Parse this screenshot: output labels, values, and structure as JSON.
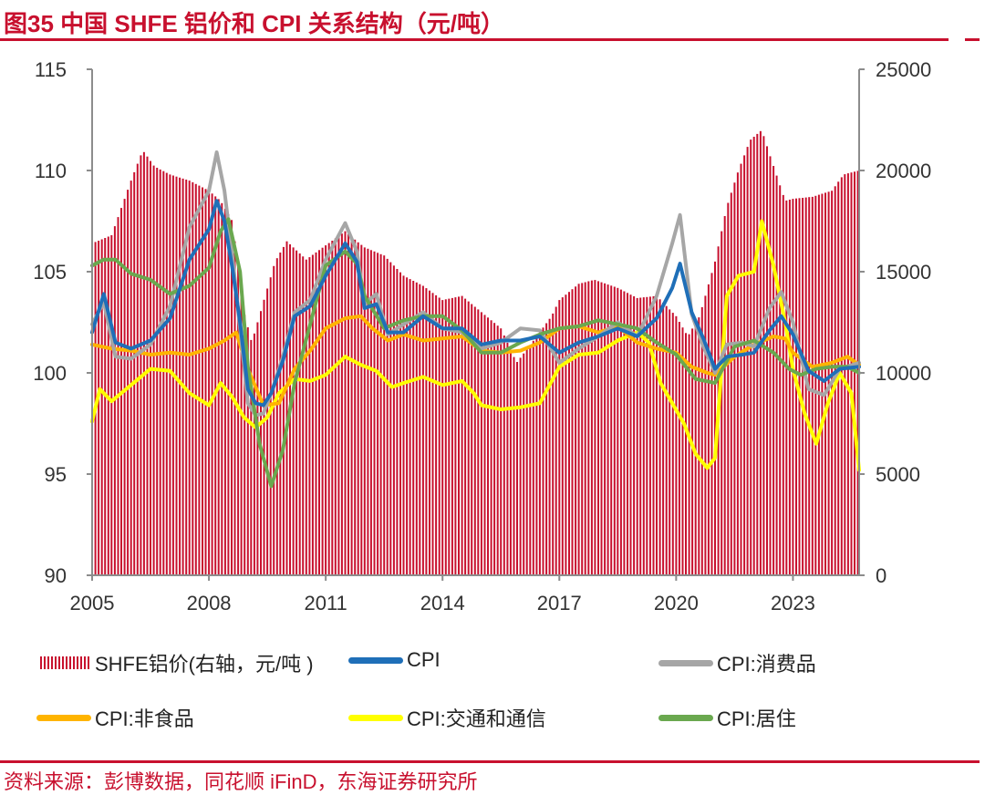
{
  "title": "图35  中国 SHFE 铝价和 CPI 关系结构（元/吨）",
  "source": "资料来源：彭博数据，同花顺 iFinD，东海证券研究所",
  "colors": {
    "brand": "#c8102e",
    "bars": "#c8102e",
    "cpi": "#1f6fb8",
    "consumer": "#a6a6a6",
    "nonfood": "#ffb400",
    "transport": "#ffff00",
    "housing": "#6aa84f",
    "axis": "#8c8c8c"
  },
  "legend": [
    {
      "key": "aluminium",
      "label": "SHFE铝价(右轴，元/吨 )",
      "type": "bar"
    },
    {
      "key": "cpi",
      "label": "CPI",
      "type": "line"
    },
    {
      "key": "consumer",
      "label": "CPI:消费品",
      "type": "line"
    },
    {
      "key": "nonfood",
      "label": "CPI:非食品",
      "type": "line"
    },
    {
      "key": "transport",
      "label": "CPI:交通和通信",
      "type": "line"
    },
    {
      "key": "housing",
      "label": "CPI:居住",
      "type": "line"
    }
  ],
  "chart_data": {
    "type": "bar+line",
    "x_range": [
      2005,
      2024.7
    ],
    "x_ticks": [
      "2005",
      "2008",
      "2011",
      "2014",
      "2017",
      "2020",
      "2023"
    ],
    "y_left": {
      "range": [
        90,
        115
      ],
      "ticks": [
        "90",
        "95",
        "100",
        "105",
        "110",
        "115"
      ]
    },
    "y_right": {
      "range": [
        0,
        25000
      ],
      "ticks": [
        "0",
        "5000",
        "10000",
        "15000",
        "20000",
        "25000"
      ]
    },
    "grid": false,
    "series": [
      {
        "name": "SHFE铝价(右轴，元/吨 )",
        "type": "bar",
        "axis": "right",
        "x": [
          2005.0,
          2005.5,
          2006.0,
          2006.3,
          2006.6,
          2007.0,
          2007.5,
          2008.0,
          2008.3,
          2008.6,
          2008.9,
          2009.1,
          2009.4,
          2009.7,
          2010.0,
          2010.5,
          2011.0,
          2011.5,
          2011.8,
          2012.0,
          2012.5,
          2013.0,
          2013.5,
          2014.0,
          2014.5,
          2015.0,
          2015.5,
          2015.9,
          2016.3,
          2016.8,
          2017.0,
          2017.5,
          2017.9,
          2018.5,
          2019.0,
          2019.5,
          2020.0,
          2020.3,
          2020.6,
          2021.0,
          2021.3,
          2021.6,
          2021.9,
          2022.2,
          2022.4,
          2022.8,
          2023.0,
          2023.5,
          2024.0,
          2024.3,
          2024.7
        ],
        "values": [
          16400,
          16800,
          19500,
          21000,
          20200,
          19800,
          19500,
          19000,
          18500,
          17500,
          13000,
          11500,
          13500,
          15500,
          16500,
          15600,
          16300,
          17000,
          16500,
          16200,
          15800,
          14800,
          14300,
          13600,
          13800,
          13000,
          12200,
          10500,
          11500,
          12800,
          13600,
          14400,
          14600,
          14200,
          13700,
          13800,
          12800,
          11800,
          12800,
          15500,
          18200,
          20000,
          21500,
          22000,
          20800,
          18500,
          18600,
          18700,
          19000,
          19800,
          20000
        ]
      },
      {
        "name": "CPI",
        "type": "line",
        "axis": "left",
        "x": [
          2005.0,
          2005.3,
          2005.6,
          2006.0,
          2006.5,
          2007.0,
          2007.5,
          2008.0,
          2008.2,
          2008.4,
          2008.6,
          2008.8,
          2009.0,
          2009.2,
          2009.4,
          2009.6,
          2009.9,
          2010.2,
          2010.6,
          2011.0,
          2011.5,
          2011.8,
          2012.0,
          2012.3,
          2012.6,
          2013.0,
          2013.5,
          2014.0,
          2014.5,
          2015.0,
          2015.5,
          2016.0,
          2016.5,
          2017.0,
          2017.5,
          2018.0,
          2018.5,
          2019.0,
          2019.5,
          2019.9,
          2020.1,
          2020.4,
          2020.7,
          2021.0,
          2021.3,
          2021.7,
          2022.0,
          2022.4,
          2022.7,
          2023.0,
          2023.4,
          2023.8,
          2024.2,
          2024.7
        ],
        "values": [
          102.0,
          103.9,
          101.5,
          101.2,
          101.6,
          102.7,
          105.6,
          107.1,
          108.5,
          107.5,
          105.2,
          102.5,
          99.2,
          98.5,
          98.4,
          99.0,
          100.6,
          102.8,
          103.3,
          104.8,
          106.4,
          105.5,
          103.2,
          103.4,
          102.0,
          102.0,
          102.8,
          102.2,
          102.2,
          101.4,
          101.6,
          101.6,
          101.8,
          101.0,
          101.5,
          101.8,
          102.2,
          101.8,
          102.7,
          104.2,
          105.4,
          103.0,
          101.7,
          100.2,
          100.8,
          100.9,
          101.0,
          102.1,
          102.8,
          101.9,
          100.1,
          99.6,
          100.2,
          100.3
        ]
      },
      {
        "name": "CPI:消费品",
        "type": "line",
        "axis": "left",
        "x": [
          2005.0,
          2005.3,
          2005.6,
          2006.0,
          2006.5,
          2007.0,
          2007.5,
          2008.0,
          2008.2,
          2008.4,
          2008.6,
          2008.8,
          2009.0,
          2009.2,
          2009.4,
          2009.6,
          2009.9,
          2010.2,
          2010.6,
          2011.0,
          2011.5,
          2011.8,
          2012.0,
          2012.3,
          2012.6,
          2013.0,
          2013.5,
          2014.0,
          2014.5,
          2015.0,
          2015.5,
          2016.0,
          2016.5,
          2017.0,
          2017.5,
          2018.0,
          2018.5,
          2019.0,
          2019.5,
          2019.9,
          2020.1,
          2020.4,
          2020.7,
          2021.0,
          2021.3,
          2021.7,
          2022.0,
          2022.4,
          2022.7,
          2023.0,
          2023.4,
          2023.8,
          2024.2,
          2024.7
        ],
        "values": [
          102.4,
          103.5,
          100.8,
          100.7,
          101.4,
          103.3,
          107.2,
          109.0,
          110.9,
          109.0,
          105.8,
          102.2,
          98.5,
          97.9,
          98.0,
          99.0,
          100.8,
          103.0,
          103.6,
          105.6,
          107.4,
          106.0,
          103.4,
          103.9,
          101.9,
          102.4,
          103.0,
          102.2,
          102.0,
          101.2,
          101.5,
          102.2,
          102.1,
          100.5,
          101.2,
          101.8,
          102.5,
          101.8,
          103.8,
          106.4,
          107.8,
          102.9,
          101.3,
          100.0,
          101.4,
          101.5,
          101.3,
          103.2,
          104.0,
          102.5,
          99.2,
          98.9,
          100.2,
          100.5
        ]
      },
      {
        "name": "CPI:非食品",
        "type": "line",
        "axis": "left",
        "x": [
          2005.0,
          2005.5,
          2006.0,
          2006.5,
          2007.0,
          2007.5,
          2008.0,
          2008.4,
          2008.7,
          2009.0,
          2009.4,
          2009.8,
          2010.2,
          2010.6,
          2011.0,
          2011.5,
          2011.9,
          2012.2,
          2012.6,
          2013.0,
          2013.5,
          2014.0,
          2014.5,
          2015.0,
          2015.5,
          2016.0,
          2016.5,
          2017.0,
          2017.5,
          2018.0,
          2018.5,
          2019.0,
          2019.5,
          2020.0,
          2020.4,
          2020.8,
          2021.0,
          2021.5,
          2022.0,
          2022.5,
          2022.8,
          2023.0,
          2023.5,
          2024.0,
          2024.4,
          2024.7
        ],
        "values": [
          101.4,
          101.2,
          101.1,
          100.9,
          101.0,
          100.9,
          101.2,
          101.6,
          102.0,
          100.2,
          98.4,
          98.5,
          100.2,
          101.1,
          102.2,
          102.7,
          102.8,
          102.2,
          101.6,
          101.9,
          101.6,
          101.7,
          101.8,
          101.1,
          101.0,
          101.1,
          101.5,
          102.2,
          102.3,
          102.0,
          102.3,
          101.5,
          101.2,
          101.0,
          100.3,
          100.0,
          99.9,
          100.8,
          101.4,
          101.8,
          101.7,
          101.0,
          100.3,
          100.5,
          100.8,
          100.4
        ]
      },
      {
        "name": "CPI:交通和通信",
        "type": "line",
        "axis": "left",
        "x": [
          2005.0,
          2005.2,
          2005.5,
          2006.0,
          2006.5,
          2007.0,
          2007.5,
          2008.0,
          2008.3,
          2008.6,
          2008.9,
          2009.2,
          2009.5,
          2009.8,
          2010.2,
          2010.6,
          2011.0,
          2011.5,
          2011.9,
          2012.3,
          2012.7,
          2013.0,
          2013.5,
          2014.0,
          2014.5,
          2014.8,
          2015.0,
          2015.5,
          2016.0,
          2016.5,
          2017.0,
          2017.5,
          2018.0,
          2018.5,
          2019.0,
          2019.3,
          2019.6,
          2019.9,
          2020.2,
          2020.5,
          2020.8,
          2021.0,
          2021.3,
          2021.6,
          2022.0,
          2022.2,
          2022.5,
          2022.8,
          2023.0,
          2023.3,
          2023.6,
          2023.9,
          2024.2,
          2024.5,
          2024.7
        ],
        "values": [
          97.6,
          99.2,
          98.6,
          99.4,
          100.2,
          100.1,
          99.0,
          98.4,
          99.5,
          98.8,
          97.8,
          97.3,
          97.8,
          99.0,
          99.7,
          99.6,
          99.9,
          100.8,
          100.4,
          100.1,
          99.3,
          99.5,
          99.8,
          99.4,
          99.6,
          99.0,
          98.4,
          98.2,
          98.3,
          98.5,
          100.3,
          100.9,
          101.0,
          101.6,
          102.0,
          101.5,
          99.5,
          98.5,
          97.5,
          96.0,
          95.3,
          95.8,
          103.8,
          104.8,
          105.0,
          107.5,
          105.3,
          102.5,
          100.2,
          98.0,
          96.5,
          98.5,
          100.0,
          99.0,
          95.2
        ]
      },
      {
        "name": "CPI:居住",
        "type": "line",
        "axis": "left",
        "x": [
          2005.0,
          2005.3,
          2005.6,
          2006.0,
          2006.5,
          2007.0,
          2007.5,
          2008.0,
          2008.3,
          2008.5,
          2008.8,
          2009.0,
          2009.3,
          2009.6,
          2009.9,
          2010.2,
          2010.6,
          2011.0,
          2011.5,
          2011.8,
          2012.0,
          2012.5,
          2013.0,
          2013.5,
          2014.0,
          2014.5,
          2015.0,
          2015.5,
          2016.0,
          2016.5,
          2017.0,
          2017.5,
          2018.0,
          2018.5,
          2019.0,
          2019.5,
          2020.0,
          2020.5,
          2021.0,
          2021.5,
          2022.0,
          2022.5,
          2022.9,
          2023.2,
          2023.6,
          2024.0,
          2024.4,
          2024.7
        ],
        "values": [
          105.3,
          105.6,
          105.6,
          104.9,
          104.6,
          103.9,
          104.3,
          105.2,
          107.0,
          107.6,
          105.0,
          100.3,
          96.5,
          94.4,
          96.2,
          99.5,
          102.4,
          105.3,
          106.0,
          105.4,
          103.8,
          102.2,
          102.6,
          102.8,
          102.8,
          102.1,
          101.0,
          101.0,
          101.5,
          101.9,
          102.2,
          102.3,
          102.6,
          102.4,
          102.2,
          101.5,
          100.9,
          99.7,
          99.5,
          101.3,
          101.6,
          101.0,
          100.2,
          99.9,
          100.2,
          100.3,
          100.3,
          100.0
        ]
      }
    ]
  }
}
